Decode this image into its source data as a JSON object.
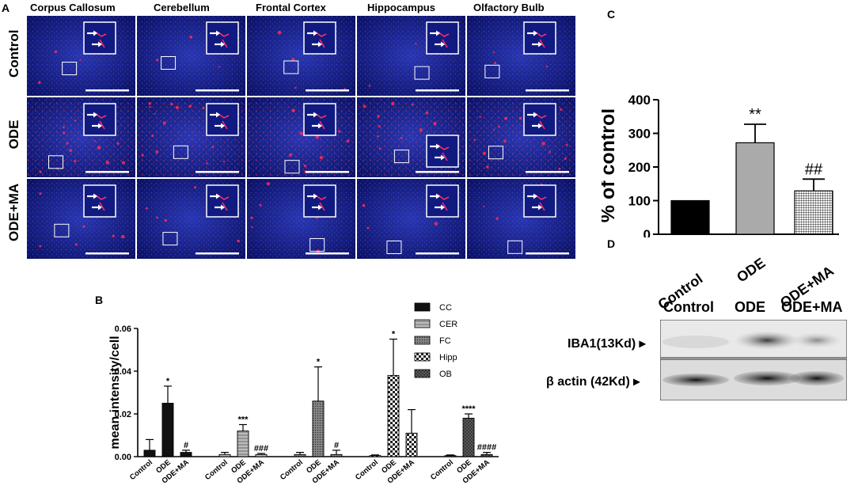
{
  "panel_letters": {
    "a": "A",
    "b": "B",
    "c": "C",
    "d": "D"
  },
  "panel_a": {
    "regions": [
      "Corpus Callosum",
      "Cerebellum",
      "Frontal Cortex",
      "Hippocampus",
      "Olfactory Bulb"
    ],
    "rows": [
      "Control",
      "ODE",
      "ODE+MA"
    ]
  },
  "chart_data": [
    {
      "panel": "B",
      "type": "bar",
      "ylabel": "mean intensity/cell",
      "ylim": [
        0,
        0.06
      ],
      "yticks": [
        "0.00",
        "0.02",
        "0.04",
        "0.06"
      ],
      "series": [
        {
          "name": "CC",
          "categories": [
            "Control",
            "ODE",
            "ODE+MA"
          ],
          "values": [
            0.003,
            0.025,
            0.002
          ],
          "errors": [
            0.005,
            0.008,
            0.001
          ],
          "annotations": [
            "",
            "*",
            "#"
          ]
        },
        {
          "name": "CER",
          "categories": [
            "Control",
            "ODE",
            "ODE+MA"
          ],
          "values": [
            0.001,
            0.012,
            0.001
          ],
          "errors": [
            0.001,
            0.003,
            0.0005
          ],
          "annotations": [
            "",
            "***",
            "###"
          ]
        },
        {
          "name": "FC",
          "categories": [
            "Control",
            "ODE",
            "ODE+MA"
          ],
          "values": [
            0.001,
            0.026,
            0.001
          ],
          "errors": [
            0.001,
            0.016,
            0.002
          ],
          "annotations": [
            "",
            "*",
            "#"
          ]
        },
        {
          "name": "Hipp",
          "categories": [
            "Control",
            "ODE",
            "ODE+MA"
          ],
          "values": [
            0.0005,
            0.038,
            0.011
          ],
          "errors": [
            0.0003,
            0.017,
            0.011
          ],
          "annotations": [
            "",
            "*",
            ""
          ]
        },
        {
          "name": "OB",
          "categories": [
            "Control",
            "ODE",
            "ODE+MA"
          ],
          "values": [
            0.0005,
            0.018,
            0.001
          ],
          "errors": [
            0.0003,
            0.002,
            0.001
          ],
          "annotations": [
            "",
            "****",
            "####"
          ]
        }
      ],
      "legend": [
        "CC",
        "CER",
        "FC",
        "Hipp",
        "OB"
      ],
      "legend_position": "top-right"
    },
    {
      "panel": "C",
      "type": "bar",
      "ylabel": "% of control",
      "ylim": [
        0,
        400
      ],
      "yticks": [
        "0",
        "100",
        "200",
        "300",
        "400"
      ],
      "categories": [
        "Control",
        "ODE",
        "ODE+MA"
      ],
      "values": [
        100,
        272,
        129
      ],
      "errors": [
        0,
        55,
        35
      ],
      "annotations": [
        "",
        "**",
        "##"
      ]
    }
  ],
  "blot": {
    "columns": [
      "Control",
      "ODE",
      "ODE+MA"
    ],
    "rows": [
      "IBA1(13Kd)",
      "β actin (42Kd)"
    ]
  },
  "colors": {
    "micrograph_bg": "#0a0f55",
    "nuclei_blue": "#2a3fd8",
    "iba1_red": "#e0284a",
    "bar_black": "#111111",
    "bar_gray": "#aaaaaa"
  }
}
